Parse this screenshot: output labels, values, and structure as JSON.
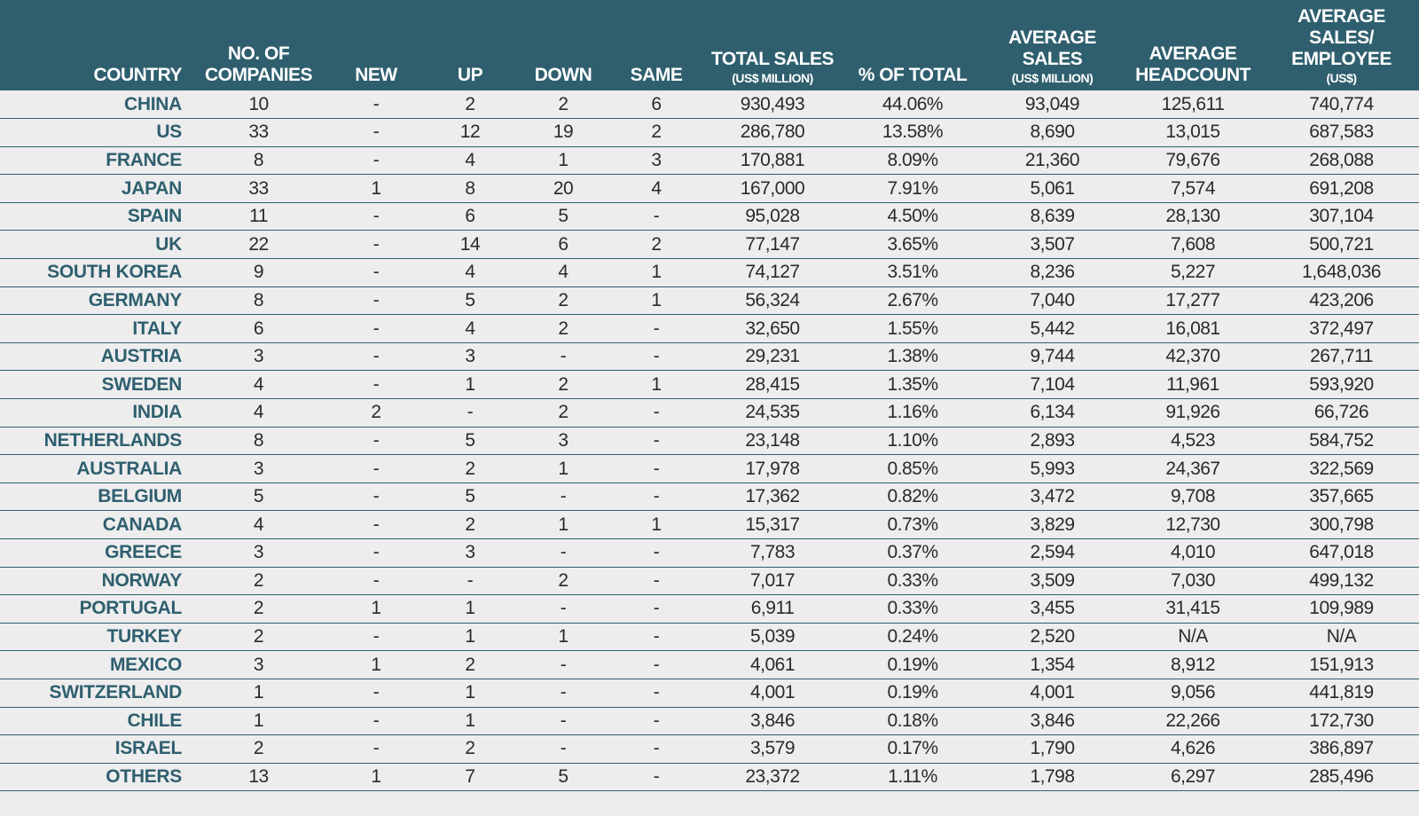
{
  "chart_data": {
    "type": "table",
    "columns": [
      {
        "main": "COUNTRY",
        "sub": ""
      },
      {
        "main": "NO. OF\nCOMPANIES",
        "sub": ""
      },
      {
        "main": "NEW",
        "sub": ""
      },
      {
        "main": "UP",
        "sub": ""
      },
      {
        "main": "DOWN",
        "sub": ""
      },
      {
        "main": "SAME",
        "sub": ""
      },
      {
        "main": "TOTAL SALES",
        "sub": "(US$ MILLION)"
      },
      {
        "main": "% OF TOTAL",
        "sub": ""
      },
      {
        "main": "AVERAGE\nSALES",
        "sub": "(US$ MILLION)"
      },
      {
        "main": "AVERAGE\nHEADCOUNT",
        "sub": ""
      },
      {
        "main": "AVERAGE\nSALES/\nEMPLOYEE",
        "sub": "(US$)"
      }
    ],
    "rows": [
      [
        "CHINA",
        "10",
        "-",
        "2",
        "2",
        "6",
        "930,493",
        "44.06%",
        "93,049",
        "125,611",
        "740,774"
      ],
      [
        "US",
        "33",
        "-",
        "12",
        "19",
        "2",
        "286,780",
        "13.58%",
        "8,690",
        "13,015",
        "687,583"
      ],
      [
        "FRANCE",
        "8",
        "-",
        "4",
        "1",
        "3",
        "170,881",
        "8.09%",
        "21,360",
        "79,676",
        "268,088"
      ],
      [
        "JAPAN",
        "33",
        "1",
        "8",
        "20",
        "4",
        "167,000",
        "7.91%",
        "5,061",
        "7,574",
        "691,208"
      ],
      [
        "SPAIN",
        "11",
        "-",
        "6",
        "5",
        "-",
        "95,028",
        "4.50%",
        "8,639",
        "28,130",
        "307,104"
      ],
      [
        "UK",
        "22",
        "-",
        "14",
        "6",
        "2",
        "77,147",
        "3.65%",
        "3,507",
        "7,608",
        "500,721"
      ],
      [
        "SOUTH KOREA",
        "9",
        "-",
        "4",
        "4",
        "1",
        "74,127",
        "3.51%",
        "8,236",
        "5,227",
        "1,648,036"
      ],
      [
        "GERMANY",
        "8",
        "-",
        "5",
        "2",
        "1",
        "56,324",
        "2.67%",
        "7,040",
        "17,277",
        "423,206"
      ],
      [
        "ITALY",
        "6",
        "-",
        "4",
        "2",
        "-",
        "32,650",
        "1.55%",
        "5,442",
        "16,081",
        "372,497"
      ],
      [
        "AUSTRIA",
        "3",
        "-",
        "3",
        "-",
        "-",
        "29,231",
        "1.38%",
        "9,744",
        "42,370",
        "267,711"
      ],
      [
        "SWEDEN",
        "4",
        "-",
        "1",
        "2",
        "1",
        "28,415",
        "1.35%",
        "7,104",
        "11,961",
        "593,920"
      ],
      [
        "INDIA",
        "4",
        "2",
        "-",
        "2",
        "-",
        "24,535",
        "1.16%",
        "6,134",
        "91,926",
        "66,726"
      ],
      [
        "NETHERLANDS",
        "8",
        "-",
        "5",
        "3",
        "-",
        "23,148",
        "1.10%",
        "2,893",
        "4,523",
        "584,752"
      ],
      [
        "AUSTRALIA",
        "3",
        "-",
        "2",
        "1",
        "-",
        "17,978",
        "0.85%",
        "5,993",
        "24,367",
        "322,569"
      ],
      [
        "BELGIUM",
        "5",
        "-",
        "5",
        "-",
        "-",
        "17,362",
        "0.82%",
        "3,472",
        "9,708",
        "357,665"
      ],
      [
        "CANADA",
        "4",
        "-",
        "2",
        "1",
        "1",
        "15,317",
        "0.73%",
        "3,829",
        "12,730",
        "300,798"
      ],
      [
        "GREECE",
        "3",
        "-",
        "3",
        "-",
        "-",
        "7,783",
        "0.37%",
        "2,594",
        "4,010",
        "647,018"
      ],
      [
        "NORWAY",
        "2",
        "-",
        "-",
        "2",
        "-",
        "7,017",
        "0.33%",
        "3,509",
        "7,030",
        "499,132"
      ],
      [
        "PORTUGAL",
        "2",
        "1",
        "1",
        "-",
        "-",
        "6,911",
        "0.33%",
        "3,455",
        "31,415",
        "109,989"
      ],
      [
        "TURKEY",
        "2",
        "-",
        "1",
        "1",
        "-",
        "5,039",
        "0.24%",
        "2,520",
        "N/A",
        "N/A"
      ],
      [
        "MEXICO",
        "3",
        "1",
        "2",
        "-",
        "-",
        "4,061",
        "0.19%",
        "1,354",
        "8,912",
        "151,913"
      ],
      [
        "SWITZERLAND",
        "1",
        "-",
        "1",
        "-",
        "-",
        "4,001",
        "0.19%",
        "4,001",
        "9,056",
        "441,819"
      ],
      [
        "CHILE",
        "1",
        "-",
        "1",
        "-",
        "-",
        "3,846",
        "0.18%",
        "3,846",
        "22,266",
        "172,730"
      ],
      [
        "ISRAEL",
        "2",
        "-",
        "2",
        "-",
        "-",
        "3,579",
        "0.17%",
        "1,790",
        "4,626",
        "386,897"
      ],
      [
        "OTHERS",
        "13",
        "1",
        "7",
        "5",
        "-",
        "23,372",
        "1.11%",
        "1,798",
        "6,297",
        "285,496"
      ]
    ],
    "colors": {
      "header_bg": "#2f5f6e",
      "header_text": "#ffffff",
      "country_text": "#2f5f6e",
      "page_bg": "#ededee"
    }
  }
}
